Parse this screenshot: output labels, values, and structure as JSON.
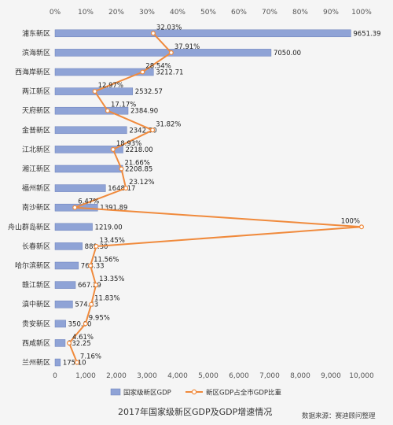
{
  "chart_data": {
    "type": "bar",
    "categories": [
      "浦东新区",
      "滨海新区",
      "西海岸新区",
      "两江新区",
      "天府新区",
      "金普新区",
      "江北新区",
      "湘江新区",
      "福州新区",
      "南沙新区",
      "舟山群岛新区",
      "长春新区",
      "哈尔滨新区",
      "赣江新区",
      "滇中新区",
      "贵安新区",
      "西咸新区",
      "兰州新区"
    ],
    "series": [
      {
        "name": "国家级新区GDP",
        "type": "bar",
        "axis": "bottom",
        "values": [
          9651.39,
          7050.0,
          3212.71,
          2532.57,
          2384.9,
          2342.5,
          2218.0,
          2208.85,
          1648.17,
          1391.89,
          1219.0,
          889.3,
          764.33,
          667.29,
          574.43,
          350.0,
          332.25,
          175.1
        ],
        "labels": [
          "9651.39",
          "7050.00",
          "3212.71",
          "2532.57",
          "2384.90",
          "2342.50",
          "2218.00",
          "2208.85",
          "1648.17",
          "1391.89",
          "1219.00",
          "889.30",
          "764.33",
          "667.29",
          "574.43",
          "350.00",
          "332.25",
          "175.10"
        ],
        "color": "#8fa3d6"
      },
      {
        "name": "新区GDP占全市GDP比重",
        "type": "line",
        "axis": "top",
        "values": [
          32.03,
          37.91,
          28.54,
          12.97,
          17.17,
          31.82,
          18.93,
          21.66,
          23.12,
          6.47,
          100,
          13.45,
          11.56,
          13.35,
          11.83,
          9.95,
          4.61,
          7.16
        ],
        "labels": [
          "32.03%",
          "37.91%",
          "28.54%",
          "12.97%",
          "17.17%",
          "31.82%",
          "18.93%",
          "21.66%",
          "23.12%",
          "6.47%",
          "100%",
          "13.45%",
          "11.56%",
          "13.35%",
          "11.83%",
          "9.95%",
          "4.61%",
          "7.16%"
        ],
        "color": "#f08a3c"
      }
    ],
    "x_bottom": {
      "min": 0,
      "max": 10000,
      "ticks": [
        "0",
        "1,000",
        "2,000",
        "3,000",
        "4,000",
        "5,000",
        "6,000",
        "7,000",
        "8,000",
        "9,000",
        "10,000"
      ]
    },
    "x_top": {
      "min": 0,
      "max": 100,
      "ticks": [
        "0%",
        "10%",
        "20%",
        "30%",
        "40%",
        "50%",
        "60%",
        "70%",
        "80%",
        "90%",
        "100%"
      ]
    },
    "legend_position": "bottom",
    "grid": false
  },
  "caption": "2017年国家级新区GDP及GDP增速情况",
  "source": "数据来源：赛迪顾问整理"
}
